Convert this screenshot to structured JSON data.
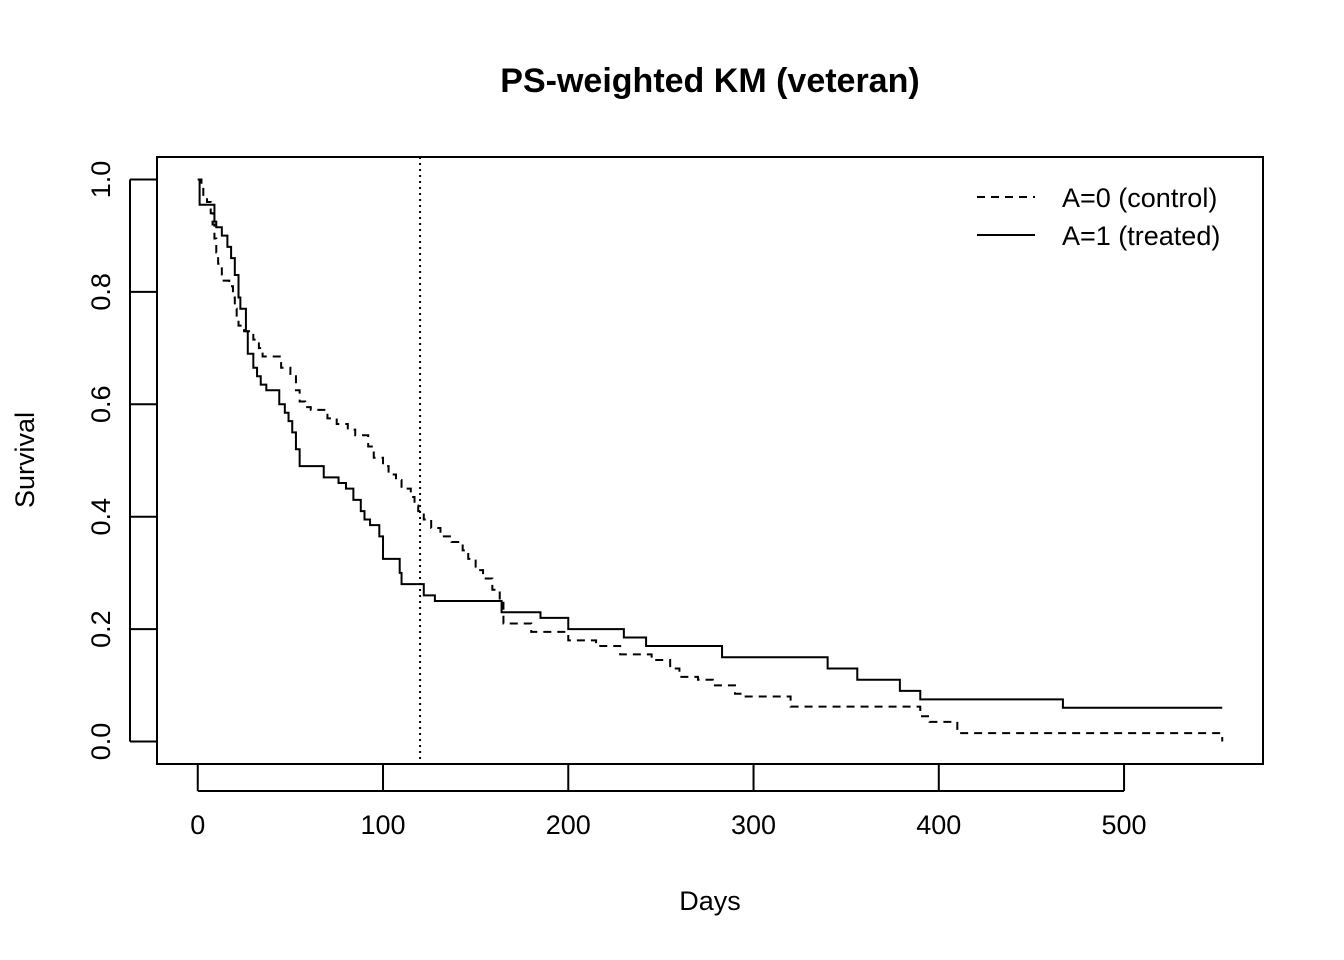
{
  "chart_data": {
    "type": "line",
    "step": true,
    "title": "PS-weighted KM (veteran)",
    "xlabel": "Days",
    "ylabel": "Survival",
    "xlim": [
      -22,
      575
    ],
    "ylim": [
      -0.04,
      1.04
    ],
    "xticks": [
      "0",
      "100",
      "200",
      "300",
      "400",
      "500"
    ],
    "yticks": [
      "0.0",
      "0.2",
      "0.4",
      "0.6",
      "0.8",
      "1.0"
    ],
    "vline": {
      "x": 120,
      "style": "dotted"
    },
    "legend": {
      "position": "top-right"
    },
    "series": [
      {
        "name": "A=0 (control)",
        "style": "dashed",
        "x": [
          0,
          2,
          3,
          5,
          7,
          8,
          9,
          10,
          11,
          13,
          17,
          19,
          20,
          21,
          22,
          25,
          30,
          33,
          35,
          45,
          50,
          53,
          55,
          58,
          61,
          70,
          75,
          81,
          85,
          92,
          95,
          100,
          103,
          107,
          110,
          115,
          117,
          119,
          122,
          126,
          131,
          137,
          143,
          146,
          150,
          154,
          159,
          163,
          165,
          180,
          200,
          215,
          228,
          245,
          255,
          260,
          270,
          278,
          290,
          295,
          320,
          345,
          390,
          395,
          410,
          470,
          553
        ],
        "y": [
          1.0,
          0.985,
          0.97,
          0.96,
          0.94,
          0.92,
          0.895,
          0.87,
          0.85,
          0.82,
          0.81,
          0.79,
          0.77,
          0.755,
          0.74,
          0.73,
          0.715,
          0.7,
          0.685,
          0.665,
          0.65,
          0.625,
          0.605,
          0.595,
          0.59,
          0.575,
          0.565,
          0.555,
          0.545,
          0.525,
          0.505,
          0.49,
          0.475,
          0.465,
          0.45,
          0.435,
          0.42,
          0.41,
          0.395,
          0.38,
          0.365,
          0.355,
          0.34,
          0.325,
          0.305,
          0.29,
          0.27,
          0.25,
          0.21,
          0.195,
          0.18,
          0.17,
          0.155,
          0.145,
          0.13,
          0.115,
          0.11,
          0.1,
          0.085,
          0.08,
          0.062,
          0.062,
          0.045,
          0.035,
          0.015,
          0.015,
          0.0
        ]
      },
      {
        "name": "A=1 (treated)",
        "style": "solid",
        "x": [
          0,
          1,
          3,
          6,
          7,
          9,
          10,
          13,
          16,
          18,
          20,
          22,
          23,
          26,
          27,
          30,
          32,
          34,
          37,
          44,
          47,
          49,
          51,
          53,
          55,
          60,
          68,
          72,
          76,
          80,
          84,
          88,
          90,
          93,
          98,
          100,
          109,
          110,
          122,
          128,
          150,
          164,
          185,
          200,
          230,
          242,
          283,
          340,
          356,
          379,
          390,
          467,
          553
        ],
        "y": [
          1.0,
          0.955,
          0.955,
          0.955,
          0.955,
          0.925,
          0.915,
          0.9,
          0.88,
          0.86,
          0.83,
          0.79,
          0.77,
          0.73,
          0.69,
          0.665,
          0.65,
          0.635,
          0.625,
          0.6,
          0.585,
          0.57,
          0.55,
          0.52,
          0.49,
          0.49,
          0.47,
          0.47,
          0.46,
          0.45,
          0.43,
          0.41,
          0.395,
          0.385,
          0.365,
          0.325,
          0.3,
          0.28,
          0.26,
          0.25,
          0.25,
          0.23,
          0.22,
          0.2,
          0.185,
          0.17,
          0.15,
          0.13,
          0.11,
          0.09,
          0.075,
          0.06,
          0.06
        ]
      }
    ]
  }
}
